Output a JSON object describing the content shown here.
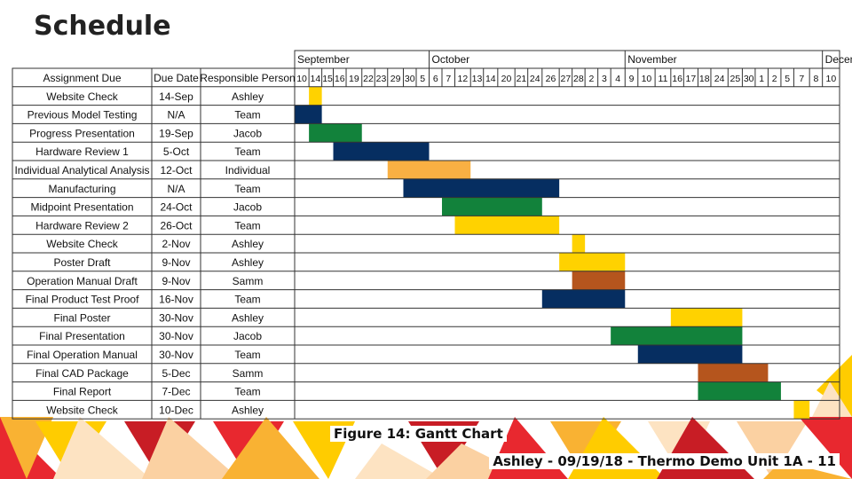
{
  "slide": {
    "title": "Schedule",
    "caption": "Figure 14: Gantt Chart",
    "footer": "Ashley - 09/19/18 - Thermo Demo Unit 1A - 11"
  },
  "colors": {
    "yellow": "#FFD200",
    "orange": "#F9B043",
    "green": "#12823B",
    "navy": "#062E61",
    "brown": "#B5551D",
    "decoration": [
      "#E8282F",
      "#F9B233",
      "#FFCC00",
      "#FDE3C2",
      "#C81D25",
      "#FBD1A2"
    ]
  },
  "chart_data": {
    "type": "table",
    "headers": [
      "Assignment Due",
      "Due Date",
      "Responsible Person"
    ],
    "months": [
      {
        "label": "September",
        "start": 0,
        "span": 10
      },
      {
        "label": "October",
        "start": 10,
        "span": 14
      },
      {
        "label": "November",
        "start": 24,
        "span": 14
      },
      {
        "label": "December",
        "start": 38,
        "span": 8
      }
    ],
    "days": [
      "10",
      "14",
      "15",
      "16",
      "19",
      "22",
      "23",
      "29",
      "30",
      "5",
      "6",
      "7",
      "12",
      "13",
      "14",
      "20",
      "21",
      "24",
      "26",
      "27",
      "28",
      "2",
      "3",
      "4",
      "9",
      "10",
      "11",
      "16",
      "17",
      "18",
      "24",
      "25",
      "30",
      "1",
      "2",
      "5",
      "7",
      "8",
      "10"
    ],
    "day_labels_aligned": [
      "10",
      "14",
      "15",
      "16",
      "19",
      "22",
      "23",
      "29",
      "30",
      "5",
      "6",
      "7",
      "12",
      "13",
      "14",
      "20",
      "21",
      "24",
      "26",
      "27",
      "28",
      "2",
      "3",
      "4",
      "9",
      "10",
      "11",
      "16",
      "17",
      "18",
      "24",
      "25",
      "30",
      "1",
      "2",
      "5",
      "7",
      "8",
      "10"
    ],
    "rows": [
      {
        "task": "Website Check",
        "due": "14-Sep",
        "person": "Ashley",
        "start": 1,
        "end": 1,
        "color": "yellow"
      },
      {
        "task": "Previous Model Testing",
        "due": "N/A",
        "person": "Team",
        "start": 0,
        "end": 1,
        "color": "navy"
      },
      {
        "task": "Progress Presentation",
        "due": "19-Sep",
        "person": "Jacob",
        "start": 1,
        "end": 4,
        "color": "green"
      },
      {
        "task": "Hardware Review 1",
        "due": "5-Oct",
        "person": "Team",
        "start": 3,
        "end": 9,
        "color": "navy"
      },
      {
        "task": "Individual Analytical Analysis",
        "due": "12-Oct",
        "person": "Individual",
        "start": 7,
        "end": 12,
        "color": "orange"
      },
      {
        "task": "Manufacturing",
        "due": "N/A",
        "person": "Team",
        "start": 8,
        "end": 18,
        "color": "navy"
      },
      {
        "task": "Midpoint Presentation",
        "due": "24-Oct",
        "person": "Jacob",
        "start": 11,
        "end": 17,
        "color": "green"
      },
      {
        "task": "Hardware Review 2",
        "due": "26-Oct",
        "person": "Team",
        "start": 12,
        "end": 18,
        "color": "yellow"
      },
      {
        "task": "Website Check",
        "due": "2-Nov",
        "person": "Ashley",
        "start": 20,
        "end": 20,
        "color": "yellow"
      },
      {
        "task": "Poster Draft",
        "due": "9-Nov",
        "person": "Ashley",
        "start": 19,
        "end": 23,
        "color": "yellow"
      },
      {
        "task": "Operation Manual Draft",
        "due": "9-Nov",
        "person": "Samm",
        "start": 20,
        "end": 23,
        "color": "brown"
      },
      {
        "task": "Final Product Test Proof",
        "due": "16-Nov",
        "person": "Team",
        "start": 18,
        "end": 23,
        "color": "navy"
      },
      {
        "task": "Final Poster",
        "due": "30-Nov",
        "person": "Ashley",
        "start": 27,
        "end": 31,
        "color": "yellow"
      },
      {
        "task": "Final Presentation",
        "due": "30-Nov",
        "person": "Jacob",
        "start": 23,
        "end": 31,
        "color": "green"
      },
      {
        "task": "Final Operation Manual",
        "due": "30-Nov",
        "person": "Team",
        "start": 25,
        "end": 31,
        "color": "navy"
      },
      {
        "task": "Final CAD Package",
        "due": "5-Dec",
        "person": "Samm",
        "start": 29,
        "end": 33,
        "color": "brown"
      },
      {
        "task": "Final Report",
        "due": "7-Dec",
        "person": "Team",
        "start": 29,
        "end": 34,
        "color": "green"
      },
      {
        "task": "Website Check",
        "due": "10-Dec",
        "person": "Ashley",
        "start": 36,
        "end": 36,
        "color": "yellow"
      }
    ]
  }
}
